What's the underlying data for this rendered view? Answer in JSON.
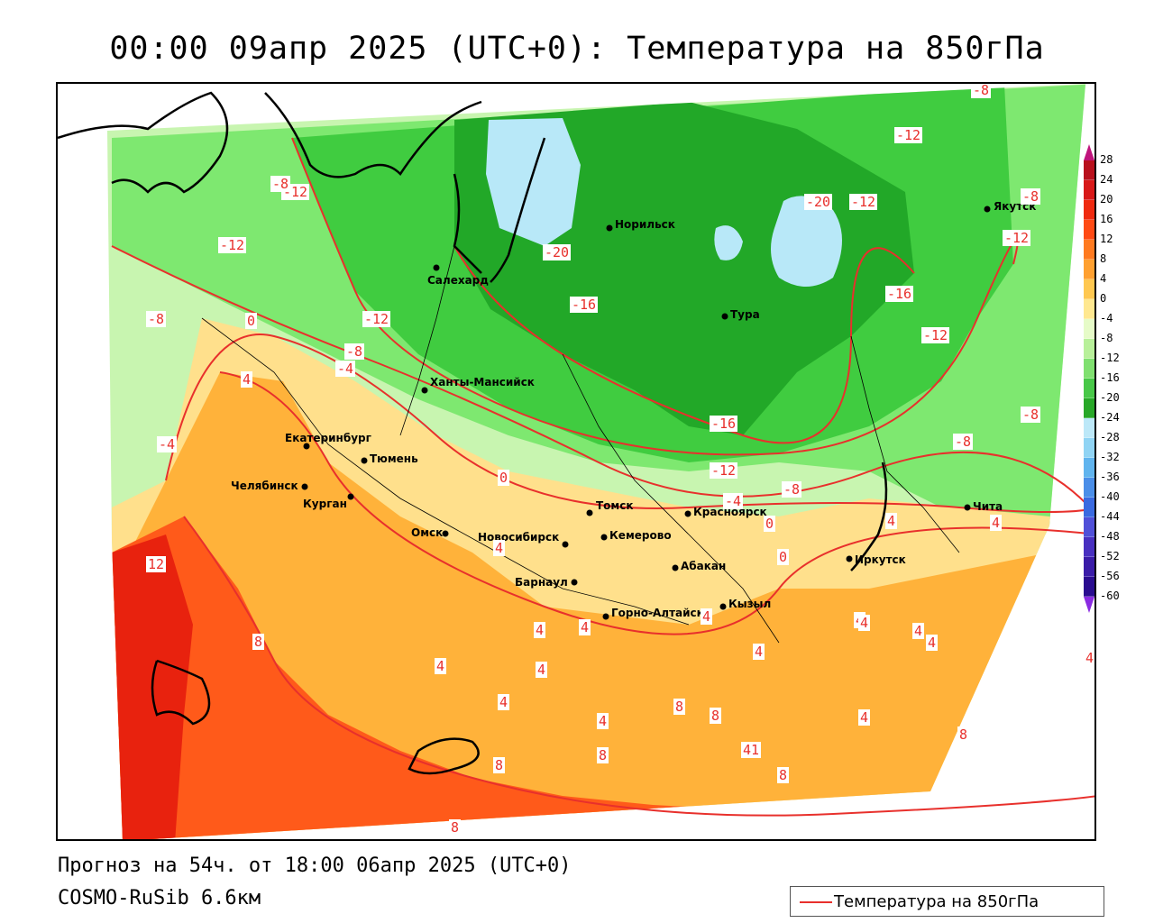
{
  "title": "00:00 09апр 2025 (UTC+0): Температура на 850гПа",
  "footer": {
    "forecast": "Прогноз на 54ч. от 18:00 06апр 2025 (UTC+0)",
    "model": "COSMO-RuSib 6.6км"
  },
  "legend": {
    "label": "Температура на 850гПа",
    "line_color": "#e8302c"
  },
  "colors": {
    "contour": "#e8302c",
    "warm_12": "#e8220e",
    "warm_8": "#ff5a1a",
    "warm_4": "#ffb23a",
    "warm_0": "#ffe08c",
    "cold_m4": "#c8f5b0",
    "cold_m8": "#7ee870",
    "cold_m12": "#40cc40",
    "cold_m16": "#22a828",
    "cold_m20": "#b8e8f8"
  },
  "scale": {
    "labels": [
      "28",
      "24",
      "20",
      "16",
      "12",
      "8",
      "4",
      "0",
      "-4",
      "-8",
      "-12",
      "-16",
      "-20",
      "-24",
      "-28",
      "-32",
      "-36",
      "-40",
      "-44",
      "-48",
      "-52",
      "-56",
      "-60"
    ],
    "colors": [
      "#b8101c",
      "#d81818",
      "#ef2a10",
      "#ff4a14",
      "#ff7a20",
      "#ffa030",
      "#ffc850",
      "#ffe890",
      "#e6fbc8",
      "#b8f09a",
      "#80e070",
      "#48c848",
      "#28a828",
      "#bce8f8",
      "#90d4f4",
      "#60b4ee",
      "#4a8ee8",
      "#3a6ae0",
      "#5050d8",
      "#4830c0",
      "#3a1ca8",
      "#2a0c90"
    ]
  },
  "cities": [
    {
      "name": "Салехард"
    },
    {
      "name": "Норильск"
    },
    {
      "name": "Тура"
    },
    {
      "name": "Якутск"
    },
    {
      "name": "Ханты-Мансийск"
    },
    {
      "name": "Екатеринбург"
    },
    {
      "name": "Тюмень"
    },
    {
      "name": "Челябинск"
    },
    {
      "name": "Курган"
    },
    {
      "name": "Омск"
    },
    {
      "name": "Новосибирск"
    },
    {
      "name": "Томск"
    },
    {
      "name": "Кемерово"
    },
    {
      "name": "Красноярск"
    },
    {
      "name": "Барнаул"
    },
    {
      "name": "Абакан"
    },
    {
      "name": "Горно-Алтайск"
    },
    {
      "name": "Кызыл"
    },
    {
      "name": "Иркутск"
    },
    {
      "name": "Чита"
    }
  ],
  "contour_labels": [
    "-8",
    "-12",
    "-12",
    "-12",
    "-8",
    "-20",
    "-8",
    "-20",
    "-12",
    "-16",
    "-16",
    "-12",
    "-12",
    "-8",
    "0",
    "-12",
    "-8",
    "-4",
    "4",
    "-4",
    "-8",
    "-16",
    "-12",
    "-8",
    "-8",
    "0",
    "-4",
    "0",
    "4",
    "4",
    "0",
    "12",
    "8",
    "4",
    "4",
    "4",
    "4",
    "4",
    "4",
    "4",
    "4",
    "4",
    "8",
    "4",
    "4",
    "8",
    "4",
    "8",
    "8",
    "8",
    "4",
    "8",
    "41",
    "4",
    "4",
    "8"
  ]
}
